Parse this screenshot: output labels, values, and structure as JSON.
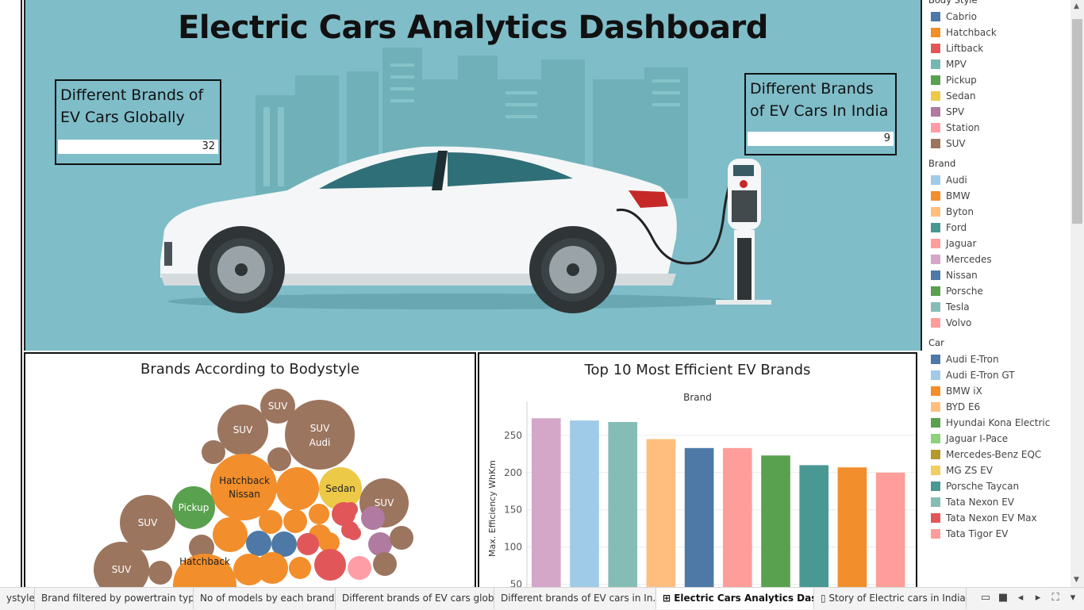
{
  "dashboard": {
    "title": "Electric Cars Analytics Dashboard",
    "kpi_global": {
      "label_line1": "Different Brands of",
      "label_line2": "EV Cars Globally",
      "value": "32"
    },
    "kpi_india": {
      "label_line1": "Different Brands",
      "label_line2": "of EV Cars In India",
      "value": "9"
    }
  },
  "bubble_panel": {
    "title": "Brands According to Bodystyle",
    "bubble_labels": [
      "SUV",
      "SUV",
      "SUV",
      "Audi",
      "Hatchback",
      "Nissan",
      "Sedan",
      "SUV",
      "Pickup",
      "SUV",
      "SUV",
      "Hatchback"
    ]
  },
  "legend": {
    "body_style": {
      "header": "Body Style",
      "items": [
        {
          "label": "Cabrio",
          "color": "#4e79a7"
        },
        {
          "label": "Hatchback",
          "color": "#f28e2b"
        },
        {
          "label": "Liftback",
          "color": "#e15759"
        },
        {
          "label": "MPV",
          "color": "#76b7b2"
        },
        {
          "label": "Pickup",
          "color": "#59a14f"
        },
        {
          "label": "Sedan",
          "color": "#edc948"
        },
        {
          "label": "SPV",
          "color": "#b07aa1"
        },
        {
          "label": "Station",
          "color": "#ff9da7"
        },
        {
          "label": "SUV",
          "color": "#9c755f"
        }
      ]
    },
    "brand": {
      "header": "Brand",
      "items": [
        {
          "label": "Audi",
          "color": "#a0cbe8"
        },
        {
          "label": "BMW",
          "color": "#f28e2b"
        },
        {
          "label": "Byton",
          "color": "#ffbe7d"
        },
        {
          "label": "Ford",
          "color": "#499894"
        },
        {
          "label": "Jaguar",
          "color": "#ff9d9a"
        },
        {
          "label": "Mercedes",
          "color": "#d4a6c8"
        },
        {
          "label": "Nissan",
          "color": "#4e79a7"
        },
        {
          "label": "Porsche",
          "color": "#59a14f"
        },
        {
          "label": "Tesla",
          "color": "#86bcb6"
        },
        {
          "label": "Volvo",
          "color": "#ff9d9a"
        }
      ]
    },
    "car": {
      "header": "Car",
      "items": [
        {
          "label": "Audi E-Tron",
          "color": "#4e79a7"
        },
        {
          "label": "Audi E-Tron GT",
          "color": "#a0cbe8"
        },
        {
          "label": "BMW iX",
          "color": "#f28e2b"
        },
        {
          "label": "BYD E6",
          "color": "#ffbe7d"
        },
        {
          "label": "Hyundai Kona Electric",
          "color": "#59a14f"
        },
        {
          "label": "Jaguar I-Pace",
          "color": "#8cd17d"
        },
        {
          "label": "Mercedes-Benz EQC",
          "color": "#b6992d"
        },
        {
          "label": "MG ZS EV",
          "color": "#f1ce63"
        },
        {
          "label": "Porsche Taycan",
          "color": "#499894"
        },
        {
          "label": "Tata Nexon EV",
          "color": "#86bcb6"
        },
        {
          "label": "Tata Nexon EV Max",
          "color": "#e15759"
        },
        {
          "label": "Tata Tigor EV",
          "color": "#ff9d9a"
        }
      ]
    }
  },
  "tabs": [
    {
      "label": "ystyle",
      "active": false
    },
    {
      "label": "Brand filtered by powertrain type",
      "active": false
    },
    {
      "label": "No of models by each brands",
      "active": false
    },
    {
      "label": "Different brands of EV cars glob...",
      "active": false
    },
    {
      "label": "Different brands of EV cars in In...",
      "active": false
    },
    {
      "label": "Electric Cars Analytics Das...",
      "active": true
    },
    {
      "label": "Story of Electric cars in India",
      "active": false
    }
  ],
  "chart_data": {
    "type": "bar",
    "title": "Top 10 Most Efficient EV Brands",
    "column_header": "Brand",
    "ylabel": "Max. Efficiency WhKm",
    "ylim": [
      40,
      285
    ],
    "yticks": [
      50,
      100,
      150,
      200,
      250
    ],
    "grid": true,
    "values": [
      273,
      270,
      268,
      245,
      233,
      233,
      223,
      210,
      207,
      200
    ],
    "colors": [
      "#d4a6c8",
      "#a0cbe8",
      "#86bcb6",
      "#ffbe7d",
      "#4e79a7",
      "#ff9d9a",
      "#59a14f",
      "#499894",
      "#f28e2b",
      "#ff9d9a"
    ]
  }
}
